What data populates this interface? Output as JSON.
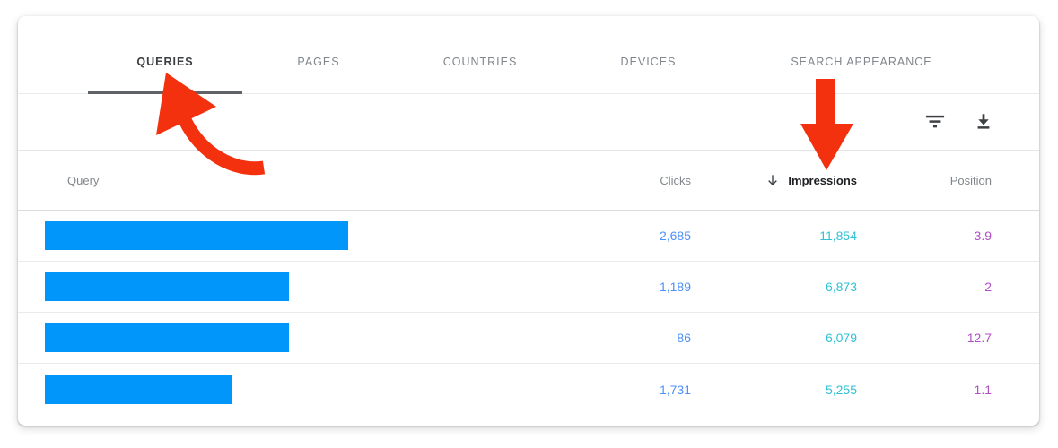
{
  "card": {
    "tabs": [
      {
        "label": "QUERIES",
        "active": true
      },
      {
        "label": "PAGES",
        "active": false
      },
      {
        "label": "COUNTRIES",
        "active": false
      },
      {
        "label": "DEVICES",
        "active": false
      },
      {
        "label": "SEARCH APPEARANCE",
        "active": false
      }
    ],
    "toolbar": {
      "filter_icon": "filter-list-icon",
      "download_icon": "download-icon"
    },
    "table": {
      "headers": {
        "query": "Query",
        "clicks": "Clicks",
        "impressions": "Impressions",
        "position": "Position"
      },
      "sort": {
        "column": "Impressions",
        "direction": "descending",
        "icon": "arrow-downward-icon"
      },
      "rows": [
        {
          "query_redacted_bar_width": 338,
          "clicks": "2,685",
          "impressions": "11,854",
          "position": "3.9"
        },
        {
          "query_redacted_bar_width": 272,
          "clicks": "1,189",
          "impressions": "6,873",
          "position": "2"
        },
        {
          "query_redacted_bar_width": 272,
          "clicks": "86",
          "impressions": "6,079",
          "position": "12.7"
        },
        {
          "query_redacted_bar_width": 208,
          "clicks": "1,731",
          "impressions": "5,255",
          "position": "1.1"
        }
      ]
    }
  },
  "colors": {
    "clicks_value": "#4f90f8",
    "impressions_value": "#30c1d5",
    "position_value": "#b050c4",
    "redaction_bar": "#0096fa",
    "annotation_red": "#f4310e",
    "active_tab_ink": "#5f6368"
  },
  "annotations": [
    {
      "type": "curved-arrow",
      "points_to": "QUERIES tab"
    },
    {
      "type": "straight-down-arrow",
      "points_to": "Impressions column"
    }
  ]
}
